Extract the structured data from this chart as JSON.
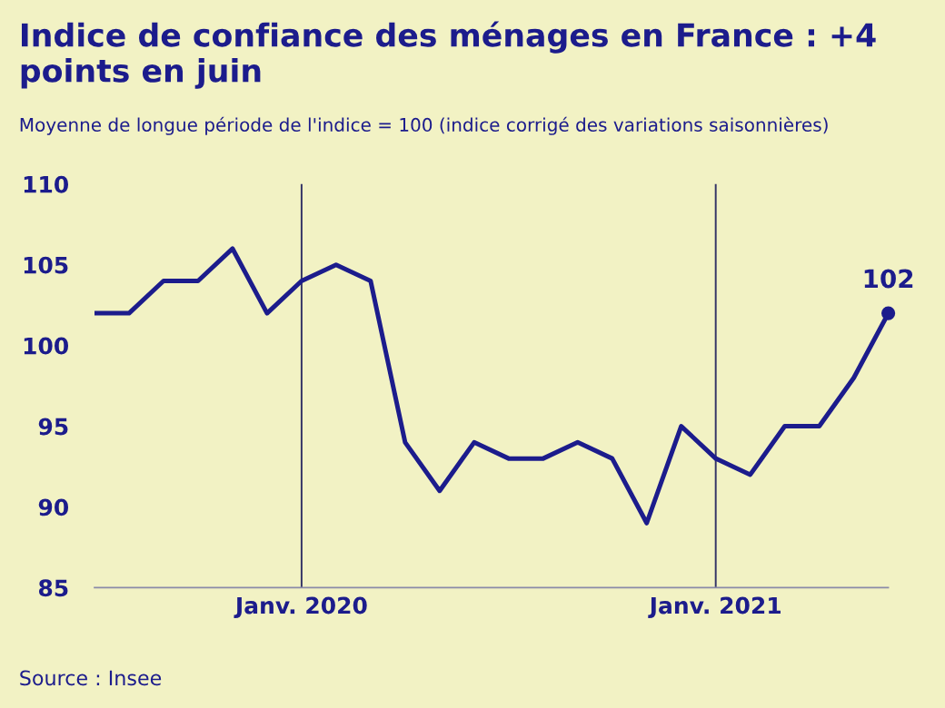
{
  "chart_data": {
    "type": "line",
    "title": "Indice de confiance des ménages en France : +4 points en juin",
    "subtitle": "Moyenne de longue période de l'indice = 100 (indice corrigé des variations saisonnières)",
    "x": [
      "2019-07",
      "2019-08",
      "2019-09",
      "2019-10",
      "2019-11",
      "2019-12",
      "2020-01",
      "2020-02",
      "2020-03",
      "2020-04",
      "2020-05",
      "2020-06",
      "2020-07",
      "2020-08",
      "2020-09",
      "2020-10",
      "2020-11",
      "2020-12",
      "2021-01",
      "2021-02",
      "2021-03",
      "2021-04",
      "2021-05",
      "2021-06"
    ],
    "series": [
      {
        "color": "#1c1c8c",
        "values": [
          102,
          102,
          104,
          104,
          106,
          102,
          104,
          105,
          104,
          94,
          91,
          94,
          93,
          93,
          94,
          93,
          89,
          95,
          93,
          92,
          95,
          95,
          98,
          102
        ]
      },
      {
        "type": "scatter",
        "color": "#1c1c8c",
        "x": [
          "2021-06"
        ],
        "values": [
          102
        ]
      }
    ],
    "xlim": [
      "2019-07",
      "2021-06"
    ],
    "xticks": [
      {
        "value": "2020-01",
        "label": "Janv. 2020"
      },
      {
        "value": "2021-01",
        "label": "Janv. 2021"
      }
    ],
    "ylim": [
      85,
      110
    ],
    "yticks": [
      85,
      90,
      95,
      100,
      105,
      110
    ],
    "grid": "x",
    "legend": false,
    "annotations": [
      {
        "text": "102",
        "x": "2021-06",
        "y": 102
      },
      "Source : Insee"
    ]
  }
}
